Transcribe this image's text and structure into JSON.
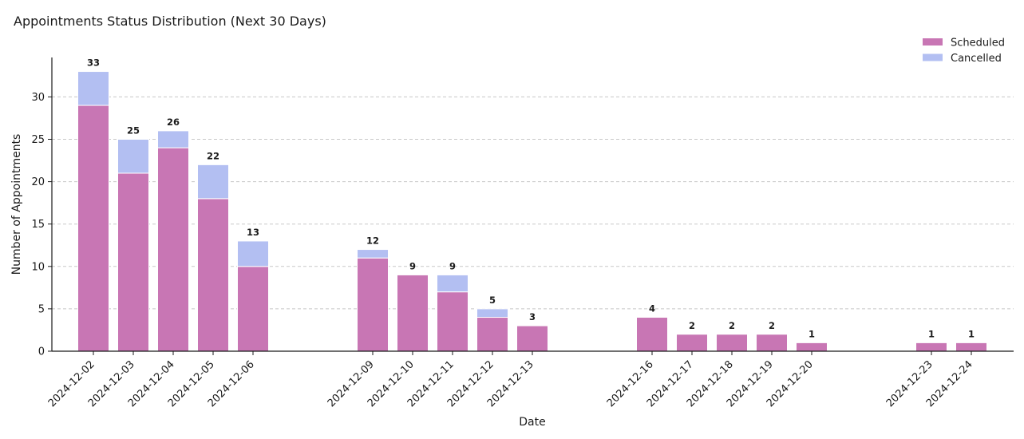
{
  "chart_data": {
    "type": "bar",
    "stacked": true,
    "title": "Appointments Status Distribution (Next 30 Days)",
    "xlabel": "Date",
    "ylabel": "Number of Appointments",
    "ylim": [
      0,
      34.7
    ],
    "yticks": [
      0,
      5,
      10,
      15,
      20,
      25,
      30
    ],
    "grid": "horizontal dashed",
    "legend_position": "top-right",
    "categories": [
      "2024-12-02",
      "2024-12-03",
      "2024-12-04",
      "2024-12-05",
      "2024-12-06",
      "2024-12-09",
      "2024-12-10",
      "2024-12-11",
      "2024-12-12",
      "2024-12-13",
      "2024-12-16",
      "2024-12-17",
      "2024-12-18",
      "2024-12-19",
      "2024-12-20",
      "2024-12-23",
      "2024-12-24"
    ],
    "series": [
      {
        "name": "Scheduled",
        "color": "#c876b4",
        "values": [
          29,
          21,
          24,
          18,
          10,
          11,
          9,
          7,
          4,
          3,
          4,
          2,
          2,
          2,
          1,
          1,
          1
        ]
      },
      {
        "name": "Cancelled",
        "color": "#b3bff2",
        "values": [
          4,
          4,
          2,
          4,
          3,
          1,
          0,
          2,
          1,
          0,
          0,
          0,
          0,
          0,
          0,
          0,
          0
        ]
      }
    ],
    "totals": [
      33,
      25,
      26,
      22,
      13,
      12,
      9,
      9,
      5,
      3,
      4,
      2,
      2,
      2,
      1,
      1,
      1
    ]
  }
}
